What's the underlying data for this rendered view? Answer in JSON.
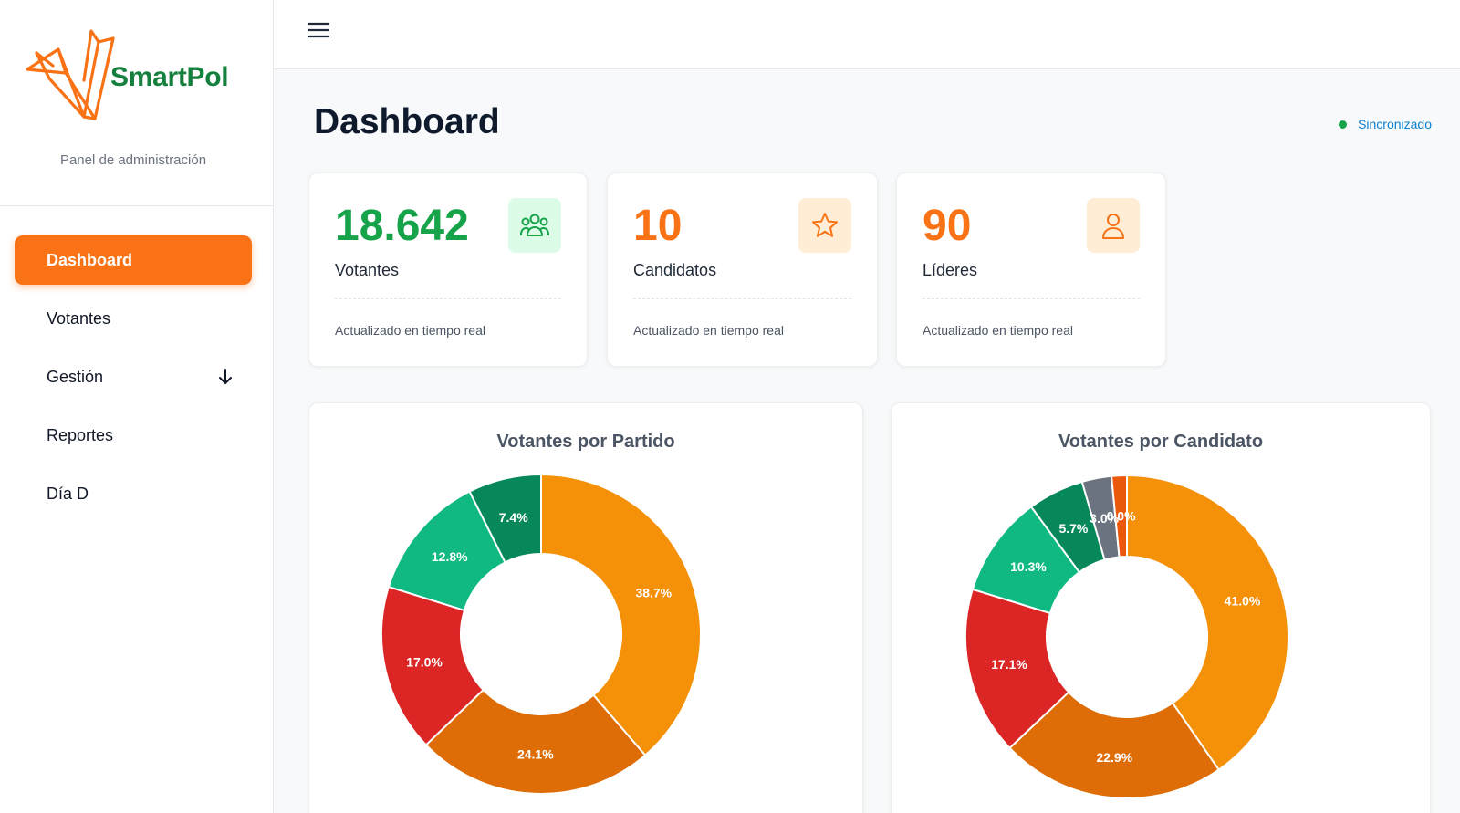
{
  "brand": {
    "name": "SmartPol",
    "subtitle": "Panel de administración"
  },
  "sidebar": {
    "items": [
      {
        "label": "Dashboard",
        "active": true
      },
      {
        "label": "Votantes"
      },
      {
        "label": "Gestión",
        "icon": "arrow-down-icon"
      },
      {
        "label": "Reportes"
      },
      {
        "label": "Día D"
      }
    ]
  },
  "topbar": {
    "menu_icon": "hamburger-menu-icon"
  },
  "page": {
    "title": "Dashboard",
    "sync_status": "Sincronizado"
  },
  "stats": [
    {
      "value": "18.642",
      "label": "Votantes",
      "footnote": "Actualizado en tiempo real",
      "icon": "users-icon",
      "color": "#16a34a",
      "icon_bg": "#dcfce7"
    },
    {
      "value": "10",
      "label": "Candidatos",
      "footnote": "Actualizado en tiempo real",
      "icon": "star-icon",
      "color": "#f97316",
      "icon_bg": "#ffedd5"
    },
    {
      "value": "90",
      "label": "Líderes",
      "footnote": "Actualizado en tiempo real",
      "icon": "user-icon",
      "color": "#f97316",
      "icon_bg": "#ffedd5"
    }
  ],
  "chart_data": [
    {
      "type": "pie",
      "title": "Votantes por Partido",
      "values": [
        38.7,
        24.1,
        17.0,
        12.8,
        7.4
      ],
      "labels": [
        "38.7%",
        "24.1%",
        "17.0%",
        "12.8%",
        "7.4%"
      ],
      "colors": [
        "#f59009",
        "#de6d07",
        "#dc2626",
        "#10b981",
        "#07885a"
      ]
    },
    {
      "type": "pie",
      "title": "Votantes por Candidato",
      "values": [
        41.0,
        22.9,
        17.1,
        10.3,
        5.7,
        3.0,
        0.0
      ],
      "labels": [
        "41.0%",
        "22.9%",
        "17.1%",
        "10.3%",
        "5.7%",
        "3.0%",
        "0.0%"
      ],
      "colors": [
        "#f59009",
        "#de6d07",
        "#dc2626",
        "#10b981",
        "#07885a",
        "#6b7280",
        "#ea580c"
      ]
    }
  ],
  "colors": {
    "accent": "#f97316",
    "brand_green": "#15803d",
    "sync_text": "#0a7fd1",
    "sync_dot": "#16a34a"
  }
}
